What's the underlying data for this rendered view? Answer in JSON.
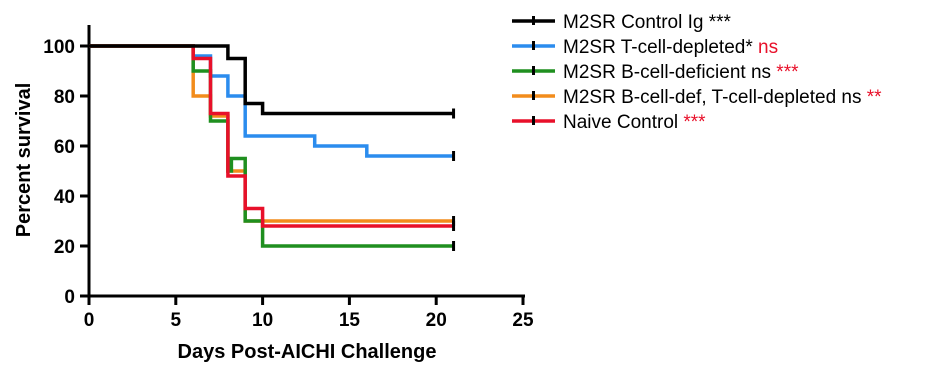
{
  "chart_data": {
    "type": "line",
    "step": true,
    "xlabel": "Days Post-AICHI Challenge",
    "ylabel": "Percent survival",
    "xlim": [
      0,
      25
    ],
    "ylim": [
      0,
      100
    ],
    "x_ticks": [
      "0",
      "5",
      "10",
      "15",
      "20",
      "25"
    ],
    "y_ticks": [
      "0",
      "20",
      "40",
      "60",
      "80",
      "100"
    ],
    "grid": false,
    "legend_position": "top-right",
    "series": [
      {
        "name": "M2SR Control Ig",
        "significance": "***",
        "significance_color": "#000000",
        "color": "#000000",
        "points": [
          [
            0,
            100
          ],
          [
            8,
            100
          ],
          [
            8,
            95
          ],
          [
            9,
            95
          ],
          [
            9,
            77
          ],
          [
            10,
            77
          ],
          [
            10,
            73
          ],
          [
            21,
            73
          ]
        ]
      },
      {
        "name": "M2SR T-cell-depleted*",
        "significance": "ns",
        "significance_color": "#e8102a",
        "color": "#2b8cee",
        "points": [
          [
            0,
            100
          ],
          [
            6,
            100
          ],
          [
            6,
            96
          ],
          [
            7,
            96
          ],
          [
            7,
            88
          ],
          [
            8,
            88
          ],
          [
            8,
            80
          ],
          [
            9,
            80
          ],
          [
            9,
            64
          ],
          [
            13,
            64
          ],
          [
            13,
            60
          ],
          [
            16,
            60
          ],
          [
            16,
            56
          ],
          [
            21,
            56
          ]
        ]
      },
      {
        "name": "M2SR B-cell-deficient  ns",
        "significance": "***",
        "significance_color": "#e8102a",
        "color": "#1f8f1f",
        "points": [
          [
            0,
            100
          ],
          [
            6,
            100
          ],
          [
            6,
            90
          ],
          [
            7,
            90
          ],
          [
            7,
            70
          ],
          [
            8,
            70
          ],
          [
            8,
            50
          ],
          [
            8.2,
            50
          ],
          [
            8.2,
            55
          ],
          [
            9,
            55
          ],
          [
            9,
            30
          ],
          [
            10,
            30
          ],
          [
            10,
            20
          ],
          [
            21,
            20
          ]
        ]
      },
      {
        "name": "M2SR B-cell-def, T-cell-depleted ns",
        "significance": "**",
        "significance_color": "#e8102a",
        "color": "#f28c1c",
        "points": [
          [
            0,
            100
          ],
          [
            6,
            100
          ],
          [
            6,
            80
          ],
          [
            7,
            80
          ],
          [
            7,
            72
          ],
          [
            8,
            72
          ],
          [
            8,
            50
          ],
          [
            9,
            50
          ],
          [
            9,
            30
          ],
          [
            21,
            30
          ]
        ]
      },
      {
        "name": "Naive Control",
        "significance": "***",
        "significance_color": "#e8102a",
        "color": "#e8102a",
        "points": [
          [
            0,
            100
          ],
          [
            6,
            100
          ],
          [
            6,
            95
          ],
          [
            7,
            95
          ],
          [
            7,
            73
          ],
          [
            8,
            73
          ],
          [
            8,
            48
          ],
          [
            9,
            48
          ],
          [
            9,
            35
          ],
          [
            10,
            35
          ],
          [
            10,
            28
          ],
          [
            21,
            28
          ]
        ]
      }
    ]
  }
}
